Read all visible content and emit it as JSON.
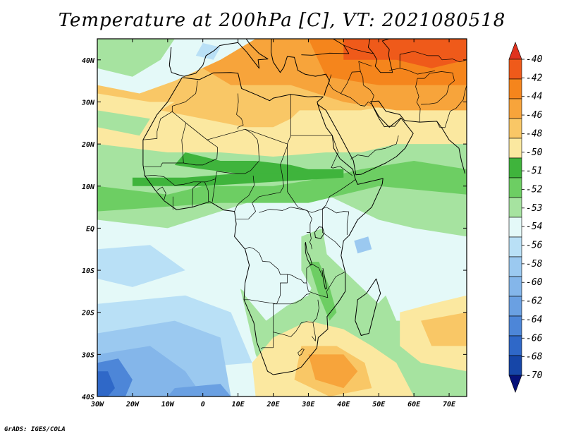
{
  "title": "Temperature at 200hPa [C], VT: 2021080518",
  "credit": "GrADS: IGES/COLA",
  "map": {
    "lon_range": [
      -30,
      75
    ],
    "lat_range": [
      -40,
      45
    ],
    "lon_ticks": [
      "30W",
      "20W",
      "10W",
      "0",
      "10E",
      "20E",
      "30E",
      "40E",
      "50E",
      "60E",
      "70E"
    ],
    "lat_ticks": [
      "40S",
      "30S",
      "20S",
      "10S",
      "EQ",
      "10N",
      "20N",
      "30N",
      "40N"
    ],
    "region": "Africa"
  },
  "colorbar": {
    "labels": [
      "-40",
      "-42",
      "-44",
      "-46",
      "-48",
      "-50",
      "-51",
      "-52",
      "-53",
      "-54",
      "-56",
      "-58",
      "-60",
      "-62",
      "-64",
      "-66",
      "-68",
      "-70"
    ],
    "colors": [
      "#e0321e",
      "#ef5a1a",
      "#f5851c",
      "#f7a43b",
      "#f9c766",
      "#fbe8a0",
      "#3fb43c",
      "#6dce63",
      "#a6e3a0",
      "#e4f9f8",
      "#b9e0f6",
      "#9bc9f0",
      "#84b6ea",
      "#6aa0e2",
      "#4d86d8",
      "#2f68c8",
      "#1646a8",
      "#06127a"
    ]
  },
  "chart_data": {
    "type": "heatmap",
    "title": "Temperature at 200hPa [C], VT: 2021080518",
    "variable": "Temperature at 200hPa",
    "units": "C",
    "valid_time": "2021080518",
    "x_range": [
      -30,
      75
    ],
    "y_range": [
      -40,
      45
    ],
    "levels": [
      -40,
      -42,
      -44,
      -46,
      -48,
      -50,
      -51,
      -52,
      -53,
      -54,
      -56,
      -58,
      -60,
      -62,
      -64,
      -66,
      -68,
      -70
    ],
    "regions": [
      {
        "area": "Arabia / Middle East (north)",
        "value_range": [
          -44,
          -42
        ]
      },
      {
        "area": "Sahara / North Africa",
        "value_range": [
          -48,
          -46
        ]
      },
      {
        "area": "Sahel band ~10-15N",
        "value_range": [
          -53,
          -51
        ]
      },
      {
        "area": "Equatorial Africa",
        "value_range": [
          -56,
          -54
        ]
      },
      {
        "area": "Southern Africa / Mozambique Channel",
        "value_range": [
          -50,
          -46
        ]
      },
      {
        "area": "South Atlantic 30-40S",
        "value_range": [
          -66,
          -58
        ]
      }
    ]
  }
}
